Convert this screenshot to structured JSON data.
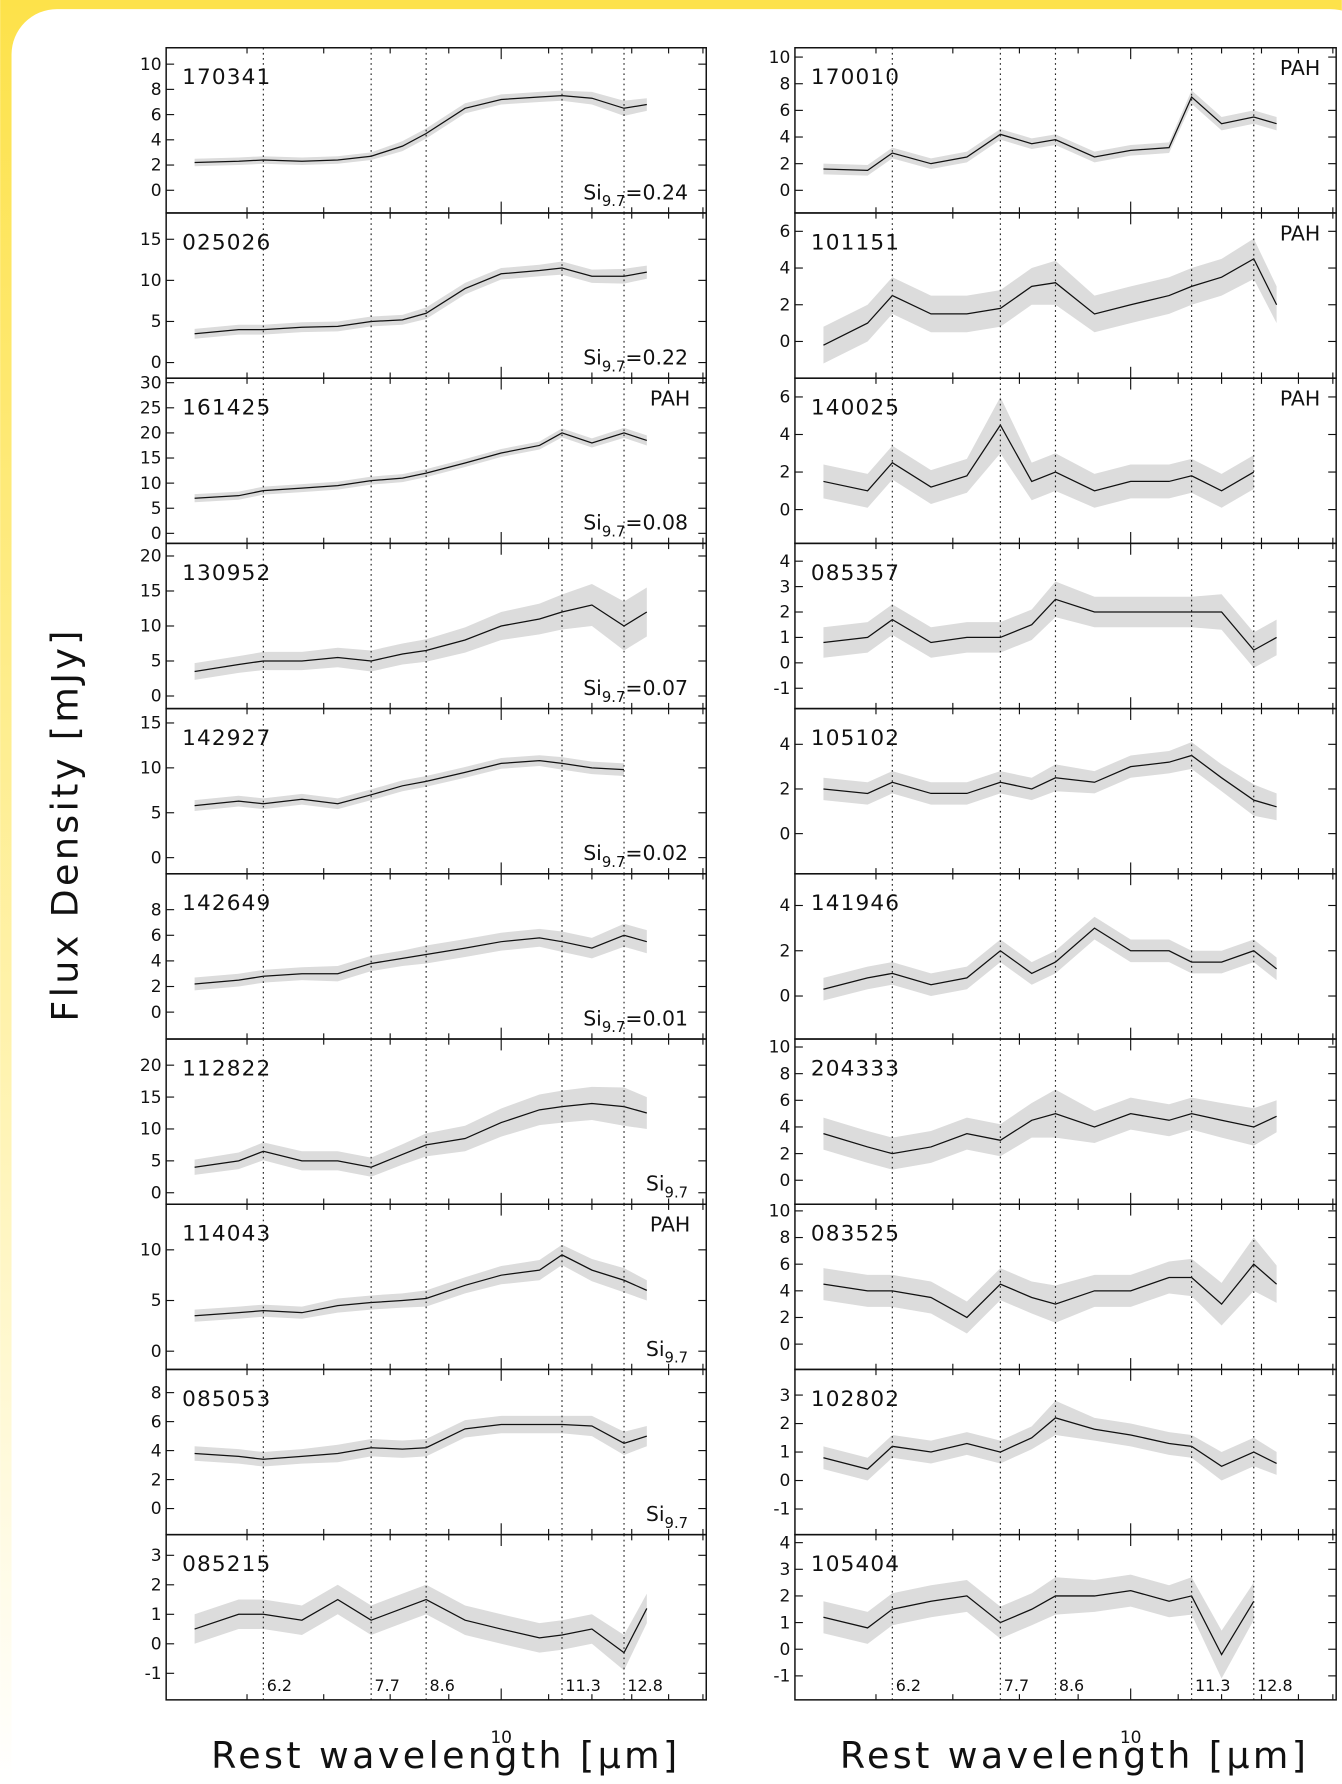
{
  "y_label": "Flux Density [mJy]",
  "x_label": "Rest wavelength [μm]",
  "log_x": true,
  "xlim": [
    5.1,
    15.1
  ],
  "xticks": [
    10
  ],
  "xminorticks": [
    6,
    7,
    8,
    9,
    11,
    12,
    13,
    14,
    15
  ],
  "features": [
    6.2,
    7.7,
    8.6,
    11.3,
    12.8
  ],
  "band_color": "#dcdcdc",
  "line_color": "#111111",
  "chart_data": [
    {
      "type": "line",
      "label": "170341",
      "ylim": [
        -1.8,
        11.3
      ],
      "yticks": [
        0,
        2,
        4,
        6,
        8,
        10
      ],
      "annotation": {
        "text": "Si",
        "sub": "9.7",
        "rest": "=0.24"
      },
      "x": [
        5.4,
        5.9,
        6.2,
        6.7,
        7.2,
        7.7,
        8.2,
        8.6,
        9.3,
        10,
        10.8,
        11.3,
        12,
        12.8,
        13.4
      ],
      "values": [
        2.2,
        2.3,
        2.4,
        2.3,
        2.4,
        2.7,
        3.5,
        4.5,
        6.5,
        7.2,
        7.4,
        7.5,
        7.3,
        6.5,
        6.8
      ],
      "errors": [
        0.3,
        0.3,
        0.3,
        0.3,
        0.3,
        0.3,
        0.4,
        0.4,
        0.4,
        0.4,
        0.4,
        0.4,
        0.5,
        0.6,
        0.5
      ]
    },
    {
      "type": "line",
      "label": "025026",
      "ylim": [
        -1.9,
        18.2
      ],
      "yticks": [
        0,
        5,
        10,
        15
      ],
      "annotation": {
        "text": "Si",
        "sub": "9.7",
        "rest": "=0.22"
      },
      "x": [
        5.4,
        5.9,
        6.2,
        6.7,
        7.2,
        7.7,
        8.2,
        8.6,
        9.3,
        10,
        10.8,
        11.3,
        12,
        12.8,
        13.4
      ],
      "values": [
        3.5,
        4,
        4,
        4.3,
        4.4,
        5,
        5.2,
        6,
        9,
        10.8,
        11.2,
        11.5,
        10.5,
        10.5,
        11
      ],
      "errors": [
        0.6,
        0.6,
        0.6,
        0.6,
        0.6,
        0.6,
        0.6,
        0.7,
        0.7,
        0.7,
        0.7,
        0.8,
        0.8,
        0.9,
        0.8
      ]
    },
    {
      "type": "line",
      "label": "161425",
      "ylim": [
        -2,
        30.9
      ],
      "yticks": [
        0,
        5,
        10,
        15,
        20,
        25,
        30
      ],
      "tag": "PAH",
      "annotation": {
        "text": "Si",
        "sub": "9.7",
        "rest": "=0.08"
      },
      "x": [
        5.4,
        5.9,
        6.2,
        6.7,
        7.2,
        7.7,
        8.2,
        8.6,
        9.3,
        10,
        10.8,
        11.3,
        12,
        12.8,
        13.4
      ],
      "values": [
        7,
        7.5,
        8.5,
        9,
        9.5,
        10.5,
        11,
        12,
        14,
        16,
        17.5,
        20,
        18,
        20,
        18.5
      ],
      "errors": [
        0.8,
        0.8,
        0.8,
        0.8,
        0.8,
        0.8,
        0.8,
        0.8,
        0.8,
        0.8,
        0.8,
        0.9,
        0.9,
        1,
        1
      ]
    },
    {
      "type": "line",
      "label": "130952",
      "ylim": [
        -1.8,
        21.8
      ],
      "yticks": [
        0,
        5,
        10,
        15,
        20
      ],
      "annotation": {
        "text": "Si",
        "sub": "9.7",
        "rest": "=0.07"
      },
      "x": [
        5.4,
        5.9,
        6.2,
        6.7,
        7.2,
        7.7,
        8.2,
        8.6,
        9.3,
        10,
        10.8,
        11.3,
        12,
        12.8,
        13.4
      ],
      "values": [
        3.5,
        4.5,
        5,
        5,
        5.5,
        5,
        6,
        6.5,
        8,
        10,
        11,
        12,
        13,
        10,
        12
      ],
      "errors": [
        1.2,
        1.2,
        1.3,
        1.3,
        1.4,
        1.5,
        1.5,
        1.6,
        1.8,
        2,
        2.2,
        2.5,
        3,
        3.5,
        3.5
      ]
    },
    {
      "type": "line",
      "label": "142927",
      "ylim": [
        -1.8,
        16.6
      ],
      "yticks": [
        0,
        5,
        10,
        15
      ],
      "annotation": {
        "text": "Si",
        "sub": "9.7",
        "rest": "=0.02"
      },
      "x": [
        5.4,
        5.9,
        6.2,
        6.7,
        7.2,
        7.7,
        8.2,
        8.6,
        9.3,
        10,
        10.8,
        11.3,
        12,
        12.8
      ],
      "values": [
        5.8,
        6.3,
        6,
        6.5,
        6,
        7,
        8,
        8.5,
        9.5,
        10.5,
        10.8,
        10.5,
        10,
        9.8
      ],
      "errors": [
        0.6,
        0.6,
        0.6,
        0.6,
        0.6,
        0.6,
        0.6,
        0.6,
        0.6,
        0.6,
        0.6,
        0.7,
        0.7,
        0.7
      ]
    },
    {
      "type": "line",
      "label": "142649",
      "ylim": [
        -2.1,
        10.8
      ],
      "yticks": [
        0,
        2,
        4,
        6,
        8
      ],
      "annotation": {
        "text": "Si",
        "sub": "9.7",
        "rest": "=0.01"
      },
      "x": [
        5.4,
        5.9,
        6.2,
        6.7,
        7.2,
        7.7,
        8.2,
        8.6,
        9.3,
        10,
        10.8,
        11.3,
        12,
        12.8,
        13.4
      ],
      "values": [
        2.2,
        2.5,
        2.8,
        3,
        3,
        3.8,
        4.2,
        4.5,
        5,
        5.5,
        5.8,
        5.5,
        5,
        6,
        5.5
      ],
      "errors": [
        0.5,
        0.5,
        0.5,
        0.5,
        0.6,
        0.6,
        0.6,
        0.7,
        0.7,
        0.7,
        0.7,
        0.8,
        0.8,
        0.9,
        0.9
      ]
    },
    {
      "type": "line",
      "label": "112822",
      "ylim": [
        -1.8,
        24.1
      ],
      "yticks": [
        0,
        5,
        10,
        15,
        20
      ],
      "annotation": {
        "text": "Si",
        "sub": "9.7"
      },
      "x": [
        5.4,
        5.9,
        6.2,
        6.7,
        7.2,
        7.7,
        8.2,
        8.6,
        9.3,
        10,
        10.8,
        11.3,
        12,
        12.8,
        13.4
      ],
      "values": [
        4,
        5,
        6.5,
        5,
        5,
        4,
        6,
        7.5,
        8.5,
        11,
        13,
        13.5,
        14,
        13.5,
        12.5
      ],
      "errors": [
        1.2,
        1.3,
        1.4,
        1.5,
        1.5,
        1.5,
        1.6,
        1.8,
        2,
        2.2,
        2.4,
        2.5,
        2.6,
        3,
        2.5
      ]
    },
    {
      "type": "line",
      "label": "114043",
      "ylim": [
        -1.8,
        14.5
      ],
      "yticks": [
        0,
        5,
        10
      ],
      "tag": "PAH",
      "annotation": {
        "text": "Si",
        "sub": "9.7"
      },
      "x": [
        5.4,
        5.9,
        6.2,
        6.7,
        7.2,
        7.7,
        8.2,
        8.6,
        9.3,
        10,
        10.8,
        11.3,
        12,
        12.8,
        13.4
      ],
      "values": [
        3.5,
        3.8,
        4,
        3.8,
        4.5,
        4.8,
        5,
        5.2,
        6.5,
        7.5,
        8,
        9.5,
        8,
        7,
        6
      ],
      "errors": [
        0.6,
        0.6,
        0.6,
        0.6,
        0.7,
        0.7,
        0.7,
        0.8,
        0.8,
        0.9,
        1,
        1,
        1.1,
        1.2,
        1
      ]
    },
    {
      "type": "line",
      "label": "085053",
      "ylim": [
        -1.8,
        9.6
      ],
      "yticks": [
        0,
        2,
        4,
        6,
        8
      ],
      "annotation": {
        "text": "Si",
        "sub": "9.7"
      },
      "x": [
        5.4,
        5.9,
        6.2,
        6.7,
        7.2,
        7.7,
        8.2,
        8.6,
        9.3,
        10,
        10.8,
        11.3,
        12,
        12.8,
        13.4
      ],
      "values": [
        3.8,
        3.6,
        3.4,
        3.6,
        3.8,
        4.2,
        4.1,
        4.2,
        5.5,
        5.8,
        5.8,
        5.8,
        5.7,
        4.5,
        5
      ],
      "errors": [
        0.5,
        0.5,
        0.5,
        0.5,
        0.6,
        0.6,
        0.6,
        0.6,
        0.6,
        0.6,
        0.6,
        0.6,
        0.7,
        0.8,
        0.7
      ]
    },
    {
      "type": "line",
      "label": "085215",
      "ylim": [
        -1.9,
        3.7
      ],
      "yticks": [
        -1,
        0,
        1,
        2,
        3
      ],
      "show_features": true,
      "x": [
        5.4,
        5.9,
        6.2,
        6.7,
        7.2,
        7.7,
        8.2,
        8.6,
        9.3,
        10,
        10.8,
        11.3,
        12,
        12.8,
        13.4
      ],
      "values": [
        0.5,
        1,
        1,
        0.8,
        1.5,
        0.8,
        1.2,
        1.5,
        0.8,
        0.5,
        0.2,
        0.3,
        0.5,
        -0.3,
        1.2
      ],
      "errors": [
        0.5,
        0.5,
        0.5,
        0.5,
        0.5,
        0.5,
        0.5,
        0.5,
        0.5,
        0.5,
        0.5,
        0.5,
        0.5,
        0.6,
        0.5
      ]
    },
    {
      "type": "line",
      "label": "170010",
      "ylim": [
        -1.7,
        10.7
      ],
      "yticks": [
        0,
        2,
        4,
        6,
        8,
        10
      ],
      "tag": "PAH",
      "x": [
        5.4,
        5.9,
        6.2,
        6.7,
        7.2,
        7.7,
        8.2,
        8.6,
        9.3,
        10,
        10.8,
        11.3,
        12,
        12.8,
        13.4
      ],
      "values": [
        1.6,
        1.5,
        2.8,
        2,
        2.5,
        4.2,
        3.5,
        3.8,
        2.5,
        3,
        3.2,
        7,
        5,
        5.5,
        5
      ],
      "errors": [
        0.4,
        0.4,
        0.4,
        0.4,
        0.4,
        0.4,
        0.4,
        0.4,
        0.4,
        0.4,
        0.4,
        0.5,
        0.5,
        0.5,
        0.5
      ]
    },
    {
      "type": "line",
      "label": "101151",
      "ylim": [
        -2,
        7
      ],
      "yticks": [
        0,
        2,
        4,
        6
      ],
      "tag": "PAH",
      "x": [
        5.4,
        5.9,
        6.2,
        6.7,
        7.2,
        7.7,
        8.2,
        8.6,
        9.3,
        10,
        10.8,
        11.3,
        12,
        12.8,
        13.4
      ],
      "values": [
        -0.2,
        1,
        2.5,
        1.5,
        1.5,
        1.8,
        3,
        3.2,
        1.5,
        2,
        2.5,
        3,
        3.5,
        4.5,
        2
      ],
      "errors": [
        1,
        1,
        1,
        1,
        1,
        1,
        1,
        1.2,
        1,
        1,
        1,
        1,
        1,
        1.1,
        1
      ]
    },
    {
      "type": "line",
      "label": "140025",
      "ylim": [
        -1.8,
        7
      ],
      "yticks": [
        0,
        2,
        4,
        6
      ],
      "tag": "PAH",
      "x": [
        5.4,
        5.9,
        6.2,
        6.7,
        7.2,
        7.7,
        8.2,
        8.6,
        9.3,
        10,
        10.8,
        11.3,
        12,
        12.8
      ],
      "values": [
        1.5,
        1,
        2.5,
        1.2,
        1.8,
        4.5,
        1.5,
        2,
        1,
        1.5,
        1.5,
        1.8,
        1,
        2
      ],
      "errors": [
        0.9,
        0.9,
        0.9,
        0.9,
        0.9,
        1.5,
        1,
        1,
        0.9,
        0.9,
        0.9,
        0.9,
        0.9,
        0.9
      ]
    },
    {
      "type": "line",
      "label": "085357",
      "ylim": [
        -1.8,
        4.7
      ],
      "yticks": [
        -1,
        0,
        1,
        2,
        3,
        4
      ],
      "x": [
        5.4,
        5.9,
        6.2,
        6.7,
        7.2,
        7.7,
        8.2,
        8.6,
        9.3,
        10,
        10.8,
        11.3,
        12,
        12.8,
        13.4
      ],
      "values": [
        0.8,
        1,
        1.7,
        0.8,
        1,
        1,
        1.5,
        2.5,
        2,
        2,
        2,
        2,
        2,
        0.5,
        1
      ],
      "errors": [
        0.6,
        0.6,
        0.6,
        0.6,
        0.6,
        0.6,
        0.6,
        0.7,
        0.6,
        0.6,
        0.6,
        0.6,
        0.7,
        0.7,
        0.7
      ]
    },
    {
      "type": "line",
      "label": "105102",
      "ylim": [
        -1.8,
        5.6
      ],
      "yticks": [
        0,
        2,
        4
      ],
      "x": [
        5.4,
        5.9,
        6.2,
        6.7,
        7.2,
        7.7,
        8.2,
        8.6,
        9.3,
        10,
        10.8,
        11.3,
        12,
        12.8,
        13.4
      ],
      "values": [
        2,
        1.8,
        2.3,
        1.8,
        1.8,
        2.3,
        2,
        2.5,
        2.3,
        3,
        3.2,
        3.5,
        2.5,
        1.5,
        1.2
      ],
      "errors": [
        0.5,
        0.5,
        0.5,
        0.5,
        0.5,
        0.5,
        0.5,
        0.6,
        0.5,
        0.5,
        0.5,
        0.6,
        0.6,
        0.7,
        0.6
      ]
    },
    {
      "type": "line",
      "label": "141946",
      "ylim": [
        -1.9,
        5.4
      ],
      "yticks": [
        0,
        2,
        4
      ],
      "x": [
        5.4,
        5.9,
        6.2,
        6.7,
        7.2,
        7.7,
        8.2,
        8.6,
        9.3,
        10,
        10.8,
        11.3,
        12,
        12.8,
        13.4
      ],
      "values": [
        0.3,
        0.8,
        1,
        0.5,
        0.8,
        2,
        1,
        1.5,
        3,
        2,
        2,
        1.5,
        1.5,
        2,
        1.2
      ],
      "errors": [
        0.5,
        0.5,
        0.5,
        0.5,
        0.5,
        0.5,
        0.5,
        0.5,
        0.5,
        0.5,
        0.5,
        0.5,
        0.5,
        0.5,
        0.5
      ]
    },
    {
      "type": "line",
      "label": "204333",
      "ylim": [
        -1.8,
        10.6
      ],
      "yticks": [
        0,
        2,
        4,
        6,
        8,
        10
      ],
      "x": [
        5.4,
        5.9,
        6.2,
        6.7,
        7.2,
        7.7,
        8.2,
        8.6,
        9.3,
        10,
        10.8,
        11.3,
        12,
        12.8,
        13.4
      ],
      "values": [
        3.5,
        2.5,
        2,
        2.5,
        3.5,
        3,
        4.5,
        5,
        4,
        5,
        4.5,
        5,
        4.5,
        4,
        4.8
      ],
      "errors": [
        1.2,
        1.2,
        1.2,
        1.2,
        1.2,
        1.2,
        1.3,
        1.8,
        1.2,
        1.2,
        1.2,
        1.2,
        1.3,
        1.4,
        1.2
      ]
    },
    {
      "type": "line",
      "label": "083525",
      "ylim": [
        -1.9,
        10.5
      ],
      "yticks": [
        0,
        2,
        4,
        6,
        8,
        10
      ],
      "x": [
        5.4,
        5.9,
        6.2,
        6.7,
        7.2,
        7.7,
        8.2,
        8.6,
        9.3,
        10,
        10.8,
        11.3,
        12,
        12.8,
        13.4
      ],
      "values": [
        4.5,
        4,
        4,
        3.5,
        2,
        4.5,
        3.5,
        3,
        4,
        4,
        5,
        5,
        3,
        6,
        4.5
      ],
      "errors": [
        1.2,
        1.2,
        1.2,
        1.2,
        1.2,
        1.2,
        1.2,
        1.4,
        1.2,
        1.2,
        1.2,
        1.4,
        1.6,
        2,
        1.4
      ]
    },
    {
      "type": "line",
      "label": "102802",
      "ylim": [
        -1.9,
        3.9
      ],
      "yticks": [
        -1,
        0,
        1,
        2,
        3
      ],
      "x": [
        5.4,
        5.9,
        6.2,
        6.7,
        7.2,
        7.7,
        8.2,
        8.6,
        9.3,
        10,
        10.8,
        11.3,
        12,
        12.8,
        13.4
      ],
      "values": [
        0.8,
        0.4,
        1.2,
        1,
        1.3,
        1,
        1.5,
        2.2,
        1.8,
        1.6,
        1.3,
        1.2,
        0.5,
        1,
        0.6
      ],
      "errors": [
        0.4,
        0.4,
        0.4,
        0.4,
        0.4,
        0.4,
        0.4,
        0.6,
        0.4,
        0.4,
        0.4,
        0.4,
        0.5,
        0.5,
        0.4
      ]
    },
    {
      "type": "line",
      "label": "105404",
      "ylim": [
        -1.9,
        4.3
      ],
      "yticks": [
        -1,
        0,
        1,
        2,
        3,
        4
      ],
      "show_features": true,
      "x": [
        5.4,
        5.9,
        6.2,
        6.7,
        7.2,
        7.7,
        8.2,
        8.6,
        9.3,
        10,
        10.8,
        11.3,
        12,
        12.8
      ],
      "values": [
        1.2,
        0.8,
        1.5,
        1.8,
        2,
        1,
        1.5,
        2,
        2,
        2.2,
        1.8,
        2,
        -0.2,
        1.8
      ],
      "errors": [
        0.6,
        0.6,
        0.6,
        0.6,
        0.6,
        0.6,
        0.6,
        0.7,
        0.6,
        0.6,
        0.6,
        0.7,
        0.9,
        0.7
      ]
    }
  ]
}
